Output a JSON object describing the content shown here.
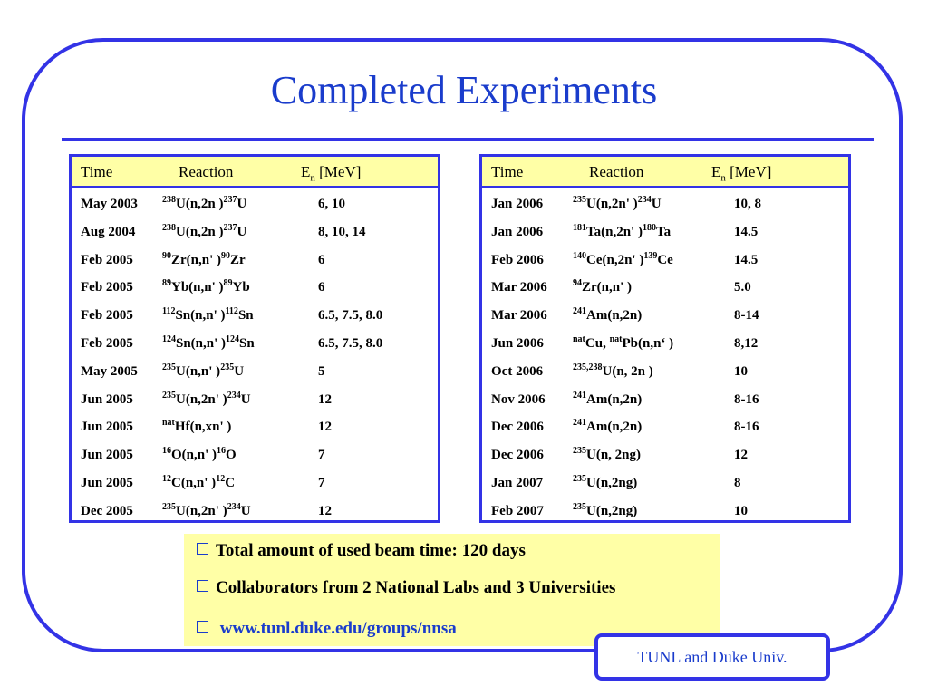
{
  "title": "Completed Experiments",
  "tables": {
    "left": {
      "headers": {
        "time": "Time",
        "reaction": "Reaction",
        "energy_prefix": "E",
        "energy_sub": "n",
        "energy_suffix": " [MeV]"
      },
      "rows": [
        {
          "time": "May 2003",
          "reaction": "<sup>238</sup>U(n,2n )<sup>237</sup>U",
          "energy": "6, 10"
        },
        {
          "time": "Aug 2004",
          "reaction": "<sup>238</sup>U(n,2n  )<sup>237</sup>U",
          "energy": "8, 10, 14"
        },
        {
          "time": "Feb 2005",
          "reaction": "<sup>90</sup>Zr(n,n' )<sup>90</sup>Zr",
          "energy": "6"
        },
        {
          "time": "Feb 2005",
          "reaction": "<sup>89</sup>Yb(n,n' )<sup>89</sup>Yb",
          "energy": "6"
        },
        {
          "time": "Feb 2005",
          "reaction": "<sup>112</sup>Sn(n,n' )<sup>112</sup>Sn",
          "energy": "6.5, 7.5, 8.0"
        },
        {
          "time": "Feb 2005",
          "reaction": "<sup>124</sup>Sn(n,n' )<sup>124</sup>Sn",
          "energy": "6.5, 7.5, 8.0"
        },
        {
          "time": "May 2005",
          "reaction": "<sup>235</sup>U(n,n' )<sup>235</sup>U",
          "energy": "5"
        },
        {
          "time": "Jun 2005",
          "reaction": "<sup>235</sup>U(n,2n' )<sup>234</sup>U",
          "energy": "12"
        },
        {
          "time": "Jun 2005",
          "reaction": "<sup>nat</sup>Hf(n,xn' )",
          "energy": "12"
        },
        {
          "time": "Jun 2005",
          "reaction": "<sup>16</sup>O(n,n' )<sup>16</sup>O",
          "energy": "7"
        },
        {
          "time": "Jun 2005",
          "reaction": "<sup>12</sup>C(n,n' )<sup>12</sup>C",
          "energy": "7"
        },
        {
          "time": "Dec 2005",
          "reaction": "<sup>235</sup>U(n,2n' )<sup>234</sup>U",
          "energy": "12"
        }
      ]
    },
    "right": {
      "headers": {
        "time": "Time",
        "reaction": "Reaction",
        "energy_prefix": "E",
        "energy_sub": "n",
        "energy_suffix": " [MeV]"
      },
      "rows": [
        {
          "time": "Jan 2006",
          "reaction": "<sup>235</sup>U(n,2n' )<sup>234</sup>U",
          "energy": "10, 8"
        },
        {
          "time": "Jan 2006",
          "reaction": "<sup>181</sup>Ta(n,2n' )<sup>180</sup>Ta",
          "energy": "14.5"
        },
        {
          "time": "Feb 2006",
          "reaction": "<sup>140</sup>Ce(n,2n' )<sup>139</sup>Ce",
          "energy": "14.5"
        },
        {
          "time": "Mar 2006",
          "reaction": "<sup>94</sup>Zr(n,n' )",
          "energy": "5.0"
        },
        {
          "time": "Mar 2006",
          "reaction": "<sup>241</sup>Am(n,2n)",
          "energy": "8-14"
        },
        {
          "time": "Jun 2006",
          "reaction": "<sup>nat</sup>Cu, <sup>nat</sup>Pb(n,n‘ )",
          "energy": "8,12"
        },
        {
          "time": "Oct 2006",
          "reaction": "<sup>235,238</sup>U(n, 2n )",
          "energy": "10"
        },
        {
          "time": "Nov 2006",
          "reaction": "<sup>241</sup>Am(n,2n)",
          "energy": "8-16"
        },
        {
          "time": "Dec 2006",
          "reaction": "<sup>241</sup>Am(n,2n)",
          "energy": "8-16"
        },
        {
          "time": "Dec 2006",
          "reaction": "<sup>235</sup>U(n, 2ng)",
          "energy": "12"
        },
        {
          "time": "Jan 2007",
          "reaction": "<sup>235</sup>U(n,2ng)",
          "energy": "8"
        },
        {
          "time": "Feb 2007",
          "reaction": "<sup>235</sup>U(n,2ng)",
          "energy": "10"
        }
      ]
    }
  },
  "notes": {
    "beam_time": "Total amount of used beam time: 120 days",
    "collaborators": "Collaborators from 2 National Labs and 3 Universities",
    "link": "www.tunl.duke.edu/groups/nnsa"
  },
  "footer": "TUNL and Duke Univ.",
  "colors": {
    "border": "#3333e6",
    "title": "#1a3ccc",
    "highlight": "#ffffa6"
  }
}
